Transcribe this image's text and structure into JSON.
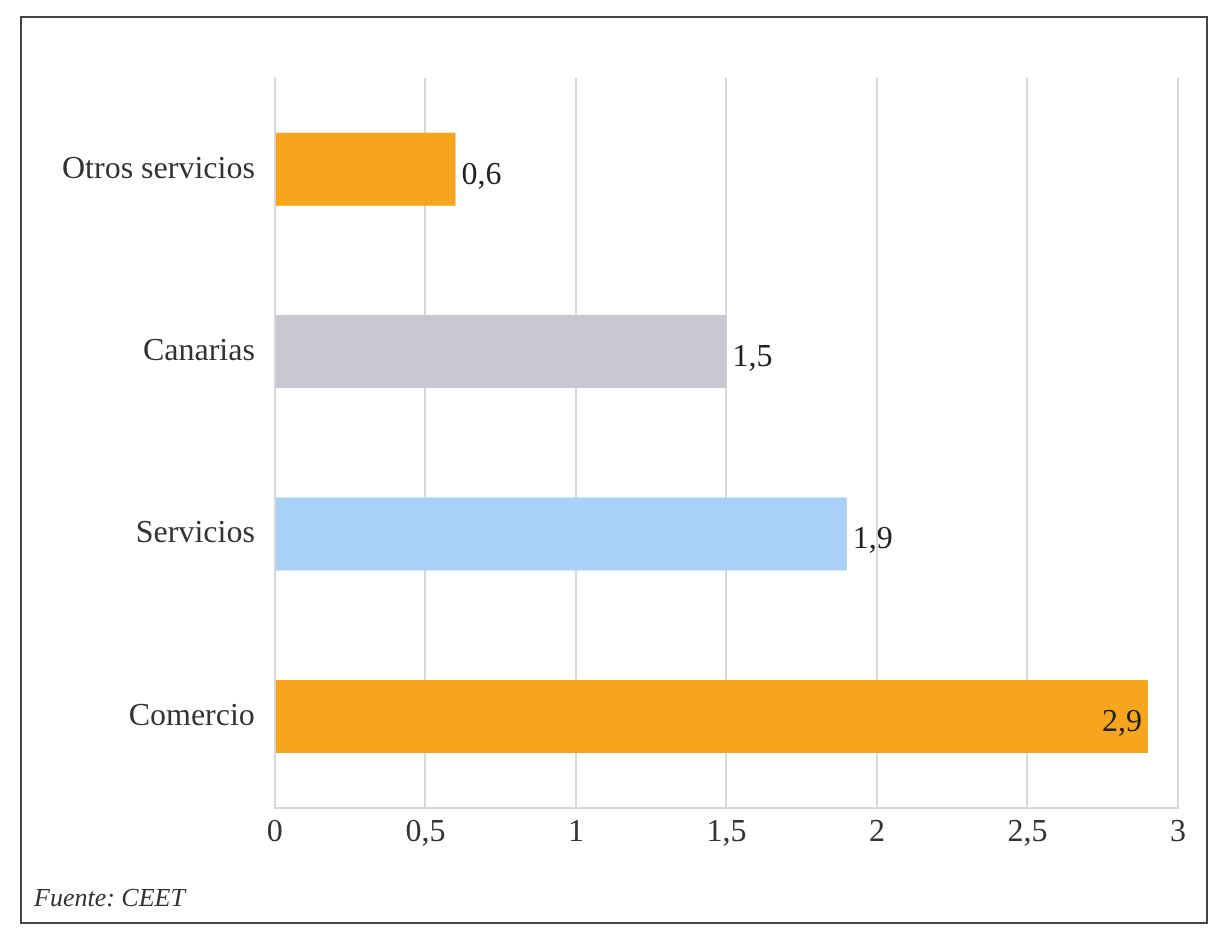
{
  "chart_data": {
    "type": "bar",
    "orientation": "horizontal",
    "categories": [
      "Otros servicios",
      "Canarias",
      "Servicios",
      "Comercio"
    ],
    "values": [
      0.6,
      1.5,
      1.9,
      2.9
    ],
    "colors": [
      "#f7a51c",
      "#c8c8d0",
      "#a9d1f7",
      "#f7a51c"
    ],
    "value_labels": [
      "0,6",
      "1,5",
      "1,9",
      "2,9"
    ],
    "xlim": [
      0,
      3
    ],
    "xticks": [
      0,
      {
        "value": 0.5,
        "label": "0,5"
      },
      1,
      {
        "value": 1.5,
        "label": "1,5"
      },
      2,
      {
        "value": 2.5,
        "label": "2,5"
      },
      3
    ],
    "grid": "x",
    "annotations": [
      "Fuente: CEET"
    ]
  }
}
